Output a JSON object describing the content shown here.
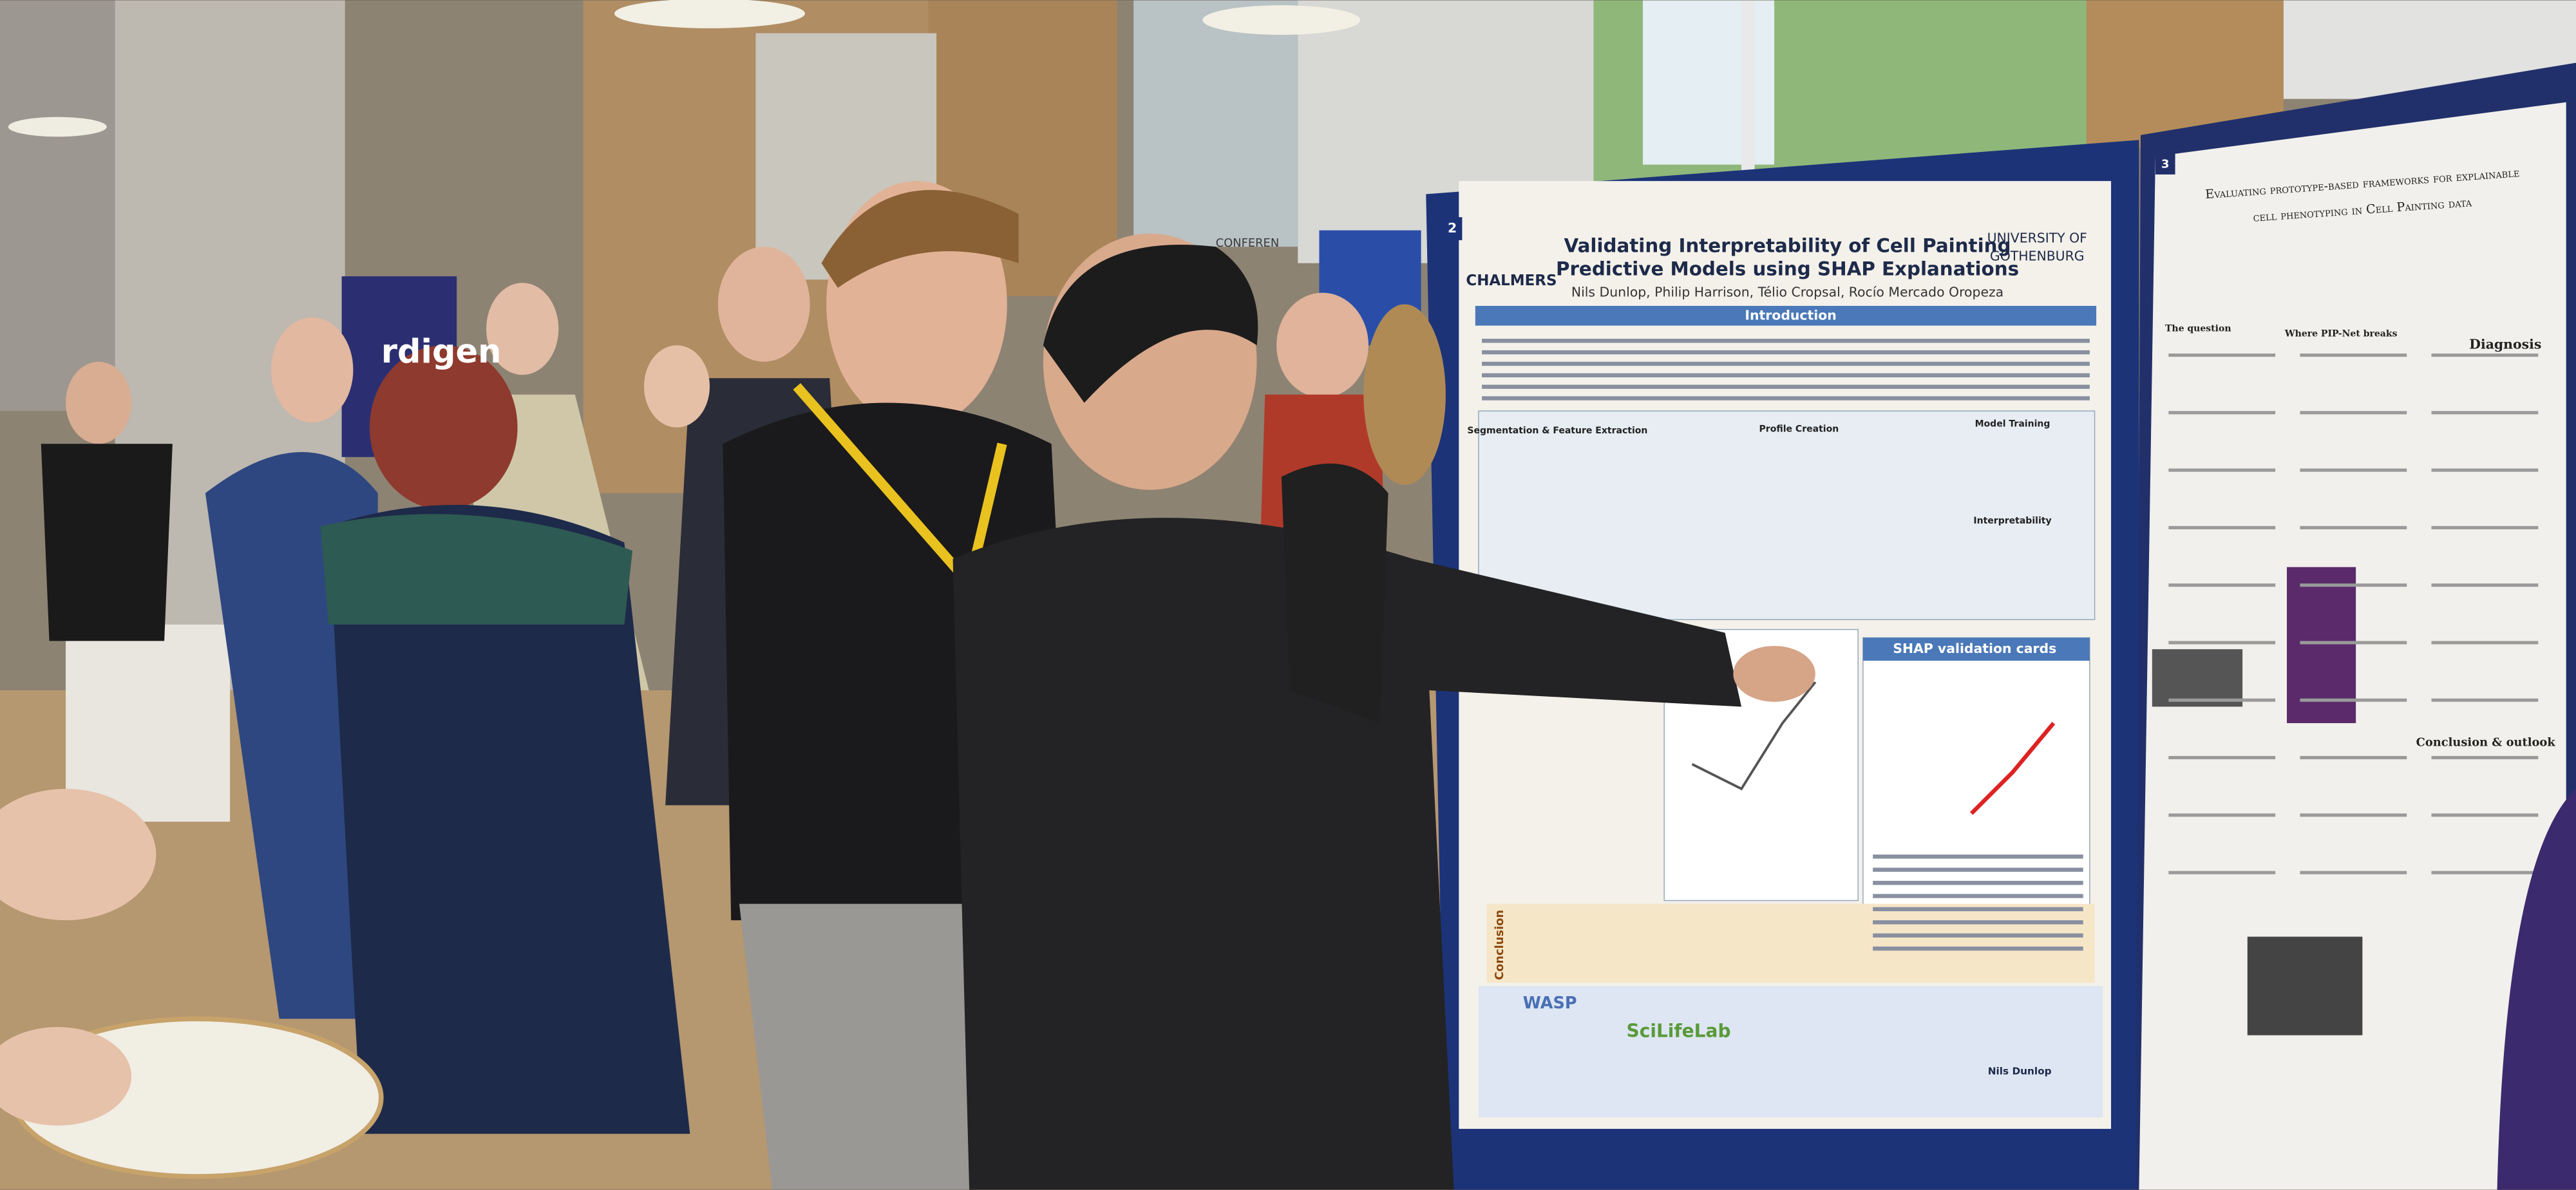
{
  "left_poster": {
    "number": "2",
    "title_lines": [
      "Validating Interpretability of Cell Painting",
      "Predictive Models using SHAP Explanations"
    ],
    "authors": "Nils Dunlop, Philip Harrison, Télio Cropsal, Rocío Mercado Oropeza",
    "logos": [
      "CHALMERS",
      "UNIVERSITY OF",
      "GOTHENBURG"
    ],
    "sections": [
      "Introduction",
      "Segmentation & Feature Extraction",
      "Profile Creation",
      "Model Training",
      "Interpretability",
      "SHAP validation cards",
      "Conclusion"
    ],
    "sponsors": [
      "WASP",
      "SciLifeLab"
    ],
    "presenter": "Nils Dunlop"
  },
  "right_poster": {
    "number": "3",
    "title_lines": [
      "Evaluating prototype-based frameworks for explainable",
      "cell phenotyping in Cell Painting data"
    ],
    "sections": [
      "The question",
      "Where PIP-Net breaks",
      "Diagnosis",
      "Conclusion & outlook"
    ]
  },
  "signage": [
    "rdigen",
    "CONFEREN"
  ]
}
